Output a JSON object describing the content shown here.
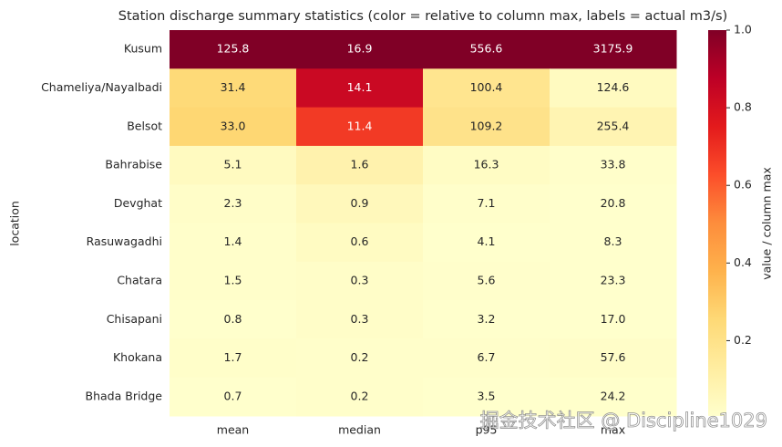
{
  "chart_data": {
    "type": "heatmap",
    "title": "Station discharge summary statistics (color = relative to column max, labels = actual m3/s)",
    "x_categories": [
      "mean",
      "median",
      "p95",
      "max"
    ],
    "y_categories": [
      "Kusum",
      "Chameliya/Nayalbadi",
      "Belsot",
      "Bahrabise",
      "Devghat",
      "Rasuwagadhi",
      "Chatara",
      "Chisapani",
      "Khokana",
      "Bhada Bridge"
    ],
    "ylabel": "location",
    "values": [
      [
        125.8,
        16.9,
        556.6,
        3175.9
      ],
      [
        31.4,
        14.1,
        100.4,
        124.6
      ],
      [
        33.0,
        11.4,
        109.2,
        255.4
      ],
      [
        5.1,
        1.6,
        16.3,
        33.8
      ],
      [
        2.3,
        0.9,
        7.1,
        20.8
      ],
      [
        1.4,
        0.6,
        4.1,
        8.3
      ],
      [
        1.5,
        0.3,
        5.6,
        23.3
      ],
      [
        0.8,
        0.3,
        3.2,
        17.0
      ],
      [
        1.7,
        0.2,
        6.7,
        57.6
      ],
      [
        0.7,
        0.2,
        3.5,
        24.2
      ]
    ],
    "value_labels": [
      [
        "125.8",
        "16.9",
        "556.6",
        "3175.9"
      ],
      [
        "31.4",
        "14.1",
        "100.4",
        "124.6"
      ],
      [
        "33.0",
        "11.4",
        "109.2",
        "255.4"
      ],
      [
        "5.1",
        "1.6",
        "16.3",
        "33.8"
      ],
      [
        "2.3",
        "0.9",
        "7.1",
        "20.8"
      ],
      [
        "1.4",
        "0.6",
        "4.1",
        "8.3"
      ],
      [
        "1.5",
        "0.3",
        "5.6",
        "23.3"
      ],
      [
        "0.8",
        "0.3",
        "3.2",
        "17.0"
      ],
      [
        "1.7",
        "0.2",
        "6.7",
        "57.6"
      ],
      [
        "0.7",
        "0.2",
        "3.5",
        "24.2"
      ]
    ],
    "colormap": "YlOrRd",
    "colorbar_label": "value / column max",
    "clim": [
      0.006,
      1
    ],
    "colorbar_ticks": [
      0.2,
      0.4,
      0.6,
      0.8,
      {
        "value": 1,
        "label": "1.0"
      }
    ],
    "watermark": "掘金技术社区 @ Discipline1029"
  }
}
